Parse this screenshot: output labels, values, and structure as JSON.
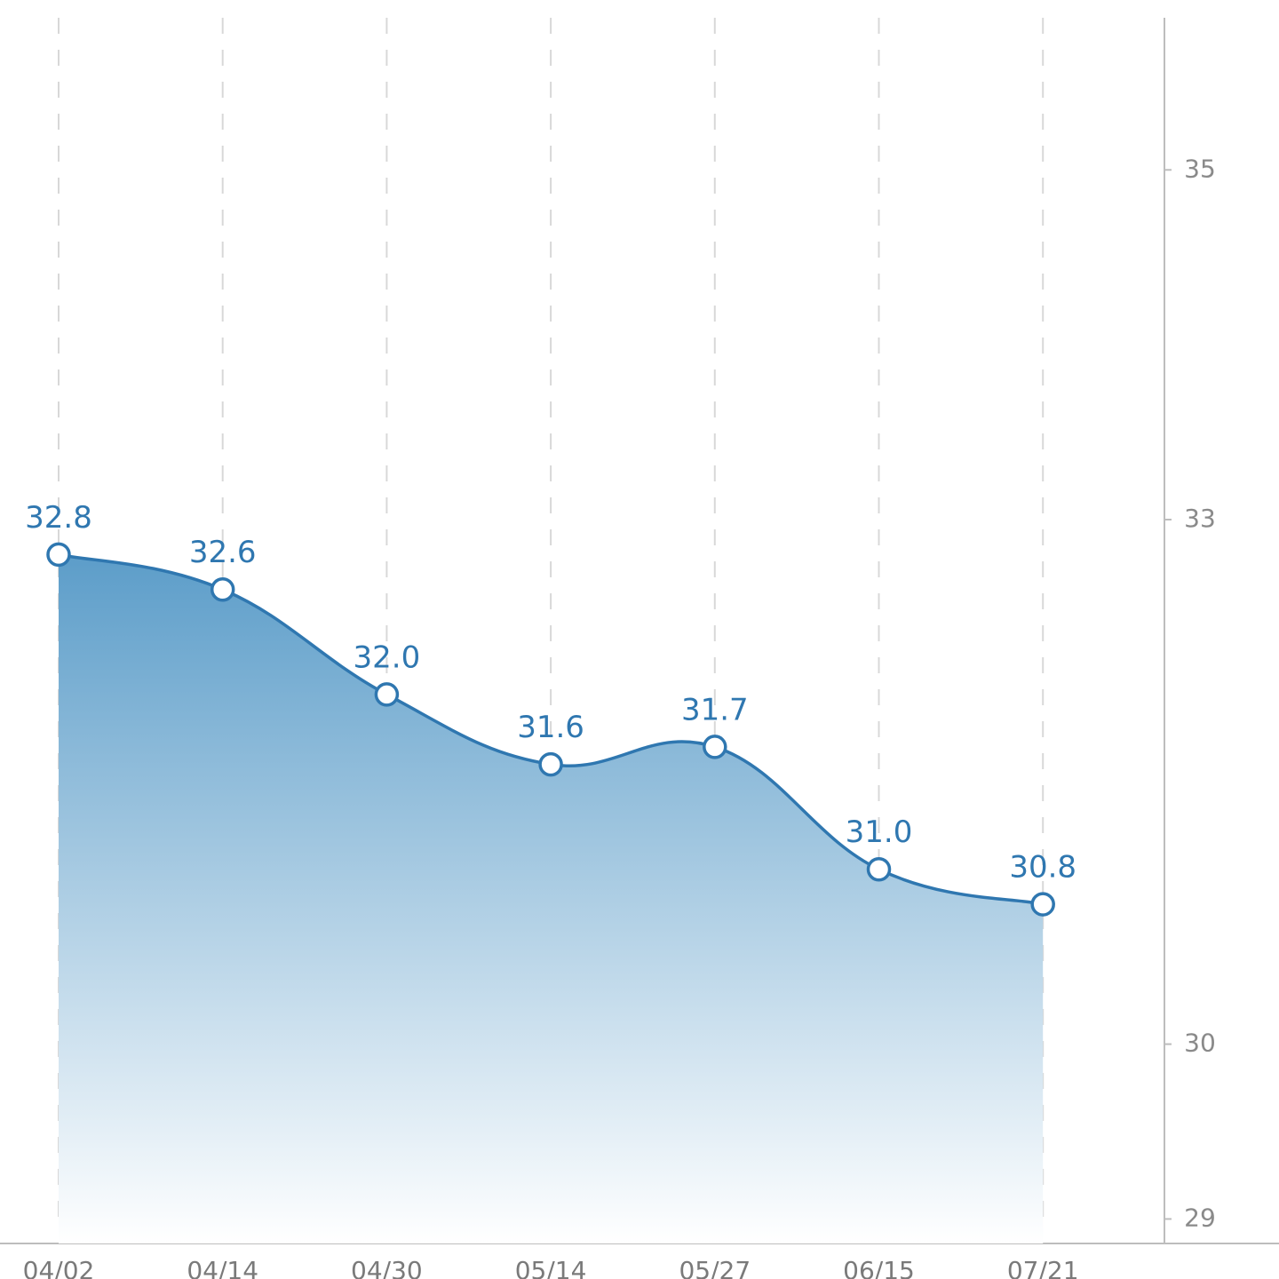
{
  "chart_data": {
    "type": "area",
    "categories": [
      "04/02",
      "04/14",
      "04/30",
      "05/14",
      "05/27",
      "06/15",
      "07/21"
    ],
    "values": [
      32.8,
      32.6,
      32.0,
      31.6,
      31.7,
      31.0,
      30.8
    ],
    "value_labels": [
      "32.8",
      "32.6",
      "32.0",
      "31.6",
      "31.7",
      "31.0",
      "30.8"
    ],
    "color": "#2f77b0",
    "ylim": [
      28.86,
      35.87
    ],
    "yticks": [
      35,
      33,
      30,
      29
    ],
    "y_axis_side": "right",
    "grid": true
  }
}
